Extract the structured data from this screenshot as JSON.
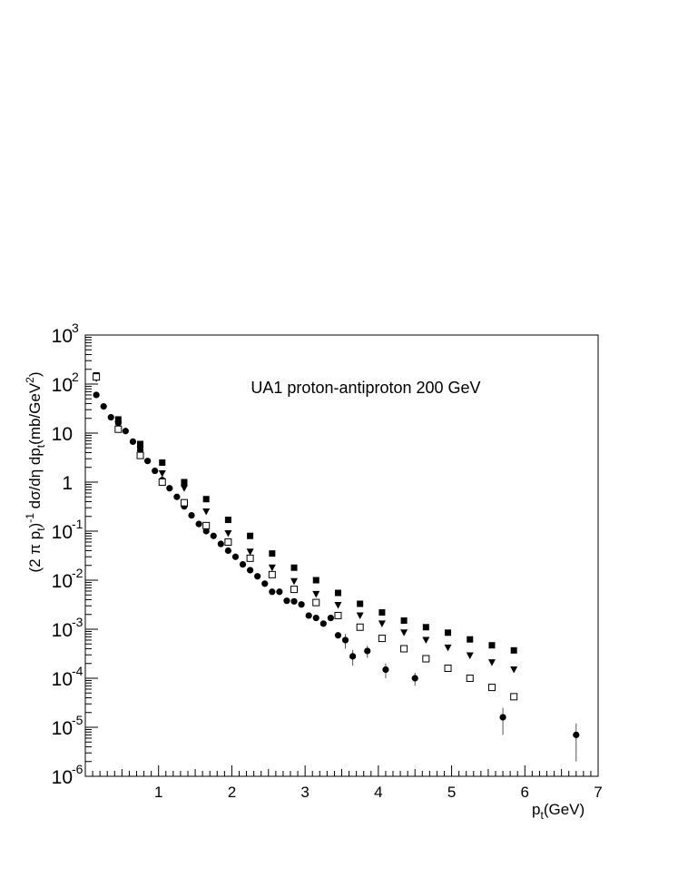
{
  "chart_data": {
    "type": "scatter",
    "title": "UA1 proton-antiproton 200 GeV",
    "xlabel": {
      "main": "p",
      "sub": "t",
      "rest": "(GeV)"
    },
    "ylabel": "(2 π p_t)^-1 dσ/dη dp_t (mb/GeV^2)",
    "ylabel_parts": {
      "p1": "(2 π p",
      "s1": "t",
      "p2": ")",
      "e1": "-1",
      "p3": " dσ/dη dp",
      "s2": "t",
      "p4": "(mb/GeV",
      "e2": "2",
      "p5": ")"
    },
    "xlim": [
      0,
      7
    ],
    "ylim": [
      1e-06,
      1000
    ],
    "y_scale": "log",
    "grid": false,
    "x_ticks": [
      "1",
      "2",
      "3",
      "4",
      "5",
      "6",
      "7"
    ],
    "y_ticks": [
      {
        "base": "10",
        "exp": "3"
      },
      {
        "base": "10",
        "exp": "2"
      },
      {
        "base": "10",
        "exp": ""
      },
      {
        "base": "1",
        "exp": ""
      },
      {
        "base": "10",
        "exp": "-1"
      },
      {
        "base": "10",
        "exp": "-2"
      },
      {
        "base": "10",
        "exp": "-3"
      },
      {
        "base": "10",
        "exp": "-4"
      },
      {
        "base": "10",
        "exp": "-5"
      },
      {
        "base": "10",
        "exp": "-6"
      }
    ],
    "series": [
      {
        "marker": "circle",
        "points": [
          {
            "x": 0.15,
            "y": 60
          },
          {
            "x": 0.25,
            "y": 35
          },
          {
            "x": 0.35,
            "y": 21
          },
          {
            "x": 0.45,
            "y": 16
          },
          {
            "x": 0.55,
            "y": 11
          },
          {
            "x": 0.65,
            "y": 6.7
          },
          {
            "x": 0.75,
            "y": 4.5
          },
          {
            "x": 0.85,
            "y": 2.7
          },
          {
            "x": 0.95,
            "y": 1.7
          },
          {
            "x": 1.05,
            "y": 1.1
          },
          {
            "x": 1.15,
            "y": 0.75
          },
          {
            "x": 1.25,
            "y": 0.5
          },
          {
            "x": 1.35,
            "y": 0.32
          },
          {
            "x": 1.45,
            "y": 0.21
          },
          {
            "x": 1.55,
            "y": 0.14
          },
          {
            "x": 1.65,
            "y": 0.1
          },
          {
            "x": 1.75,
            "y": 0.08
          },
          {
            "x": 1.85,
            "y": 0.055
          },
          {
            "x": 1.95,
            "y": 0.04
          },
          {
            "x": 2.05,
            "y": 0.03
          },
          {
            "x": 2.15,
            "y": 0.021
          },
          {
            "x": 2.25,
            "y": 0.016
          },
          {
            "x": 2.35,
            "y": 0.012
          },
          {
            "x": 2.45,
            "y": 0.0085
          },
          {
            "x": 2.55,
            "y": 0.0058
          },
          {
            "x": 2.65,
            "y": 0.0058
          },
          {
            "x": 2.75,
            "y": 0.0038
          },
          {
            "x": 2.85,
            "y": 0.0037
          },
          {
            "x": 2.95,
            "y": 0.0032
          },
          {
            "x": 3.05,
            "y": 0.0019
          },
          {
            "x": 3.15,
            "y": 0.0017
          },
          {
            "x": 3.25,
            "y": 0.0013
          },
          {
            "x": 3.35,
            "y": 0.0017
          },
          {
            "x": 3.45,
            "y": 0.00075
          },
          {
            "x": 3.55,
            "y": 0.0006,
            "err": 0.0002
          },
          {
            "x": 3.65,
            "y": 0.00028,
            "err": 0.0001
          },
          {
            "x": 3.85,
            "y": 0.00036,
            "err": 0.0001
          },
          {
            "x": 4.1,
            "y": 0.00015,
            "err": 5e-05
          },
          {
            "x": 4.5,
            "y": 0.0001,
            "err": 3e-05
          },
          {
            "x": 5.7,
            "y": 1.6e-05,
            "err": 9e-06
          },
          {
            "x": 6.7,
            "y": 7e-06,
            "err": 5e-06
          }
        ]
      },
      {
        "marker": "filled-square",
        "points": [
          {
            "x": 0.15,
            "y": 150
          },
          {
            "x": 0.45,
            "y": 19
          },
          {
            "x": 0.75,
            "y": 6
          },
          {
            "x": 1.05,
            "y": 2.5
          },
          {
            "x": 1.35,
            "y": 1
          },
          {
            "x": 1.65,
            "y": 0.45
          },
          {
            "x": 1.95,
            "y": 0.17
          },
          {
            "x": 2.25,
            "y": 0.08
          },
          {
            "x": 2.55,
            "y": 0.035
          },
          {
            "x": 2.85,
            "y": 0.018
          },
          {
            "x": 3.15,
            "y": 0.01
          },
          {
            "x": 3.45,
            "y": 0.0055
          },
          {
            "x": 3.75,
            "y": 0.0033
          },
          {
            "x": 4.05,
            "y": 0.0022
          },
          {
            "x": 4.35,
            "y": 0.0015
          },
          {
            "x": 4.65,
            "y": 0.0011
          },
          {
            "x": 4.95,
            "y": 0.00085
          },
          {
            "x": 5.25,
            "y": 0.00062
          },
          {
            "x": 5.55,
            "y": 0.00047
          },
          {
            "x": 5.85,
            "y": 0.00037
          }
        ]
      },
      {
        "marker": "filled-triangle-down",
        "points": [
          {
            "x": 0.15,
            "y": 130
          },
          {
            "x": 0.45,
            "y": 15
          },
          {
            "x": 0.75,
            "y": 4.5
          },
          {
            "x": 1.05,
            "y": 1.5
          },
          {
            "x": 1.35,
            "y": 0.75
          },
          {
            "x": 1.65,
            "y": 0.25
          },
          {
            "x": 1.95,
            "y": 0.09
          },
          {
            "x": 2.25,
            "y": 0.038
          },
          {
            "x": 2.55,
            "y": 0.018
          },
          {
            "x": 2.85,
            "y": 0.0095
          },
          {
            "x": 3.15,
            "y": 0.0052
          },
          {
            "x": 3.45,
            "y": 0.0031
          },
          {
            "x": 3.75,
            "y": 0.0019
          },
          {
            "x": 4.05,
            "y": 0.0013
          },
          {
            "x": 4.35,
            "y": 0.00085
          },
          {
            "x": 4.65,
            "y": 0.0006
          },
          {
            "x": 4.95,
            "y": 0.00042
          },
          {
            "x": 5.25,
            "y": 0.00029
          },
          {
            "x": 5.55,
            "y": 0.00021
          },
          {
            "x": 5.85,
            "y": 0.00015
          }
        ]
      },
      {
        "marker": "open-square",
        "points": [
          {
            "x": 0.15,
            "y": 140
          },
          {
            "x": 0.45,
            "y": 12
          },
          {
            "x": 0.75,
            "y": 3.5
          },
          {
            "x": 1.05,
            "y": 1
          },
          {
            "x": 1.35,
            "y": 0.38
          },
          {
            "x": 1.65,
            "y": 0.13
          },
          {
            "x": 1.95,
            "y": 0.06
          },
          {
            "x": 2.25,
            "y": 0.028
          },
          {
            "x": 2.55,
            "y": 0.013
          },
          {
            "x": 2.85,
            "y": 0.0065
          },
          {
            "x": 3.15,
            "y": 0.0035
          },
          {
            "x": 3.45,
            "y": 0.0019
          },
          {
            "x": 3.75,
            "y": 0.0011
          },
          {
            "x": 4.05,
            "y": 0.00065
          },
          {
            "x": 4.35,
            "y": 0.0004
          },
          {
            "x": 4.65,
            "y": 0.00025
          },
          {
            "x": 4.95,
            "y": 0.00016
          },
          {
            "x": 5.25,
            "y": 0.0001
          },
          {
            "x": 5.55,
            "y": 6.5e-05
          },
          {
            "x": 5.85,
            "y": 4.2e-05
          }
        ]
      }
    ]
  }
}
